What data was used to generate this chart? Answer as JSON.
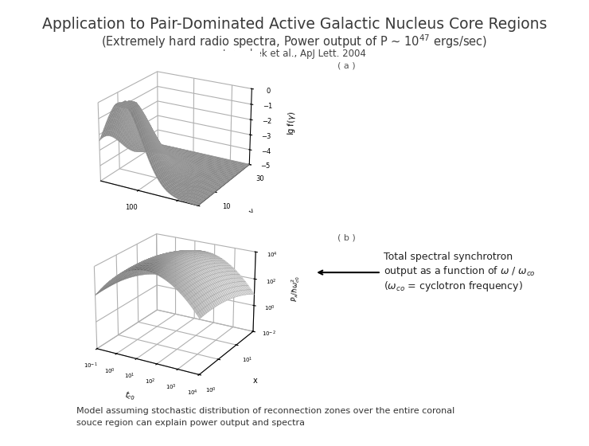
{
  "title": "Application to Pair-Dominated Active Galactic Nucleus Core Regions",
  "subtitle": "(Extremely hard radio spectra, Power output of P ~ 10$^{47}$ ergs/sec)",
  "reference": "Jaroschek et al., ApJ Lett. 2004",
  "title_color": "#3a3a3a",
  "subtitle_color": "#3a3a3a",
  "reference_color": "#444444",
  "bg_color": "#ffffff",
  "bottom_text_line1": "Model assuming stochastic distribution of reconnection zones over the entire coronal",
  "bottom_text_line2": "souce region can explain power output and spectra"
}
